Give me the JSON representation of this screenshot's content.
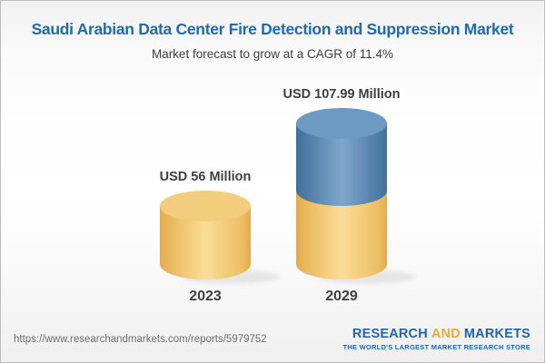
{
  "header": {
    "title": "Saudi Arabian Data Center Fire Detection and Suppression Market",
    "subtitle": "Market forecast to grow at a CAGR of 11.4%"
  },
  "chart_data": {
    "type": "bar",
    "style": "3d-cylinder",
    "title": "Saudi Arabian Data Center Fire Detection and Suppression Market",
    "subtitle": "Market forecast to grow at a CAGR of 11.4%",
    "cagr_percent": 11.4,
    "unit": "USD Million",
    "categories": [
      "2023",
      "2029"
    ],
    "values": [
      56,
      107.99
    ],
    "value_labels": [
      "USD 56 Million",
      "USD 107.99 Million"
    ],
    "stacked": "2029 cylinder shows a gold base segment equal to the 2023 value with a blue growth segment on top",
    "legend": null,
    "grid": false,
    "axes_visible": false,
    "xlabel": "",
    "ylabel": ""
  },
  "footer": {
    "url": "https://www.researchandmarkets.com/reports/5979752",
    "logo": {
      "word1": "RESEARCH",
      "word2": "AND",
      "word3": "MARKETS",
      "tagline": "THE WORLD'S LARGEST MARKET RESEARCH STORE"
    }
  },
  "colors": {
    "title_blue": "#1E6BB0",
    "logo_blue": "#1E66AE",
    "logo_orange": "#F2A83B",
    "label_dark": "#3F3F3F",
    "url_gray": "#6F6F6F",
    "gold_edge": "#E3AB4C",
    "gold_mid": "#FBDD98",
    "gold_top_face": "#F2CE7C",
    "blue_edge": "#40709B",
    "blue_mid": "#7EA7CC",
    "blue_top_face": "#6C9AC2"
  }
}
